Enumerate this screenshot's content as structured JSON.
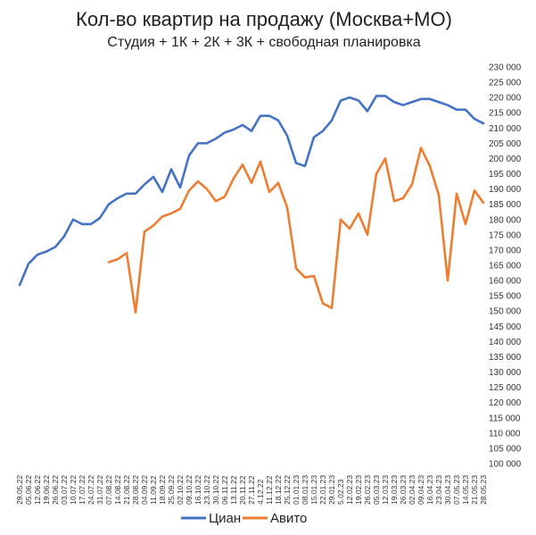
{
  "chart_data": {
    "type": "line",
    "title": "Кол-во квартир на продажу (Москва+МО)",
    "subtitle": "Студия + 1К + 2К + 3К + свободная планировка",
    "ylim": [
      100000,
      230000
    ],
    "ytick_step": 5000,
    "ytick_labels": [
      "100 000",
      "105 000",
      "110 000",
      "115 000",
      "120 000",
      "125 000",
      "130 000",
      "135 000",
      "140 000",
      "145 000",
      "150 000",
      "155 000",
      "160 000",
      "165 000",
      "170 000",
      "175 000",
      "180 000",
      "185 000",
      "190 000",
      "195 000",
      "200 000",
      "205 000",
      "210 000",
      "215 000",
      "220 000",
      "225 000",
      "230 000"
    ],
    "categories": [
      "29.05.22",
      "05.06.22",
      "12.06.22",
      "19.06.22",
      "26.06.22",
      "03.07.22",
      "10.07.22",
      "17.07.22",
      "24.07.22",
      "31.07.22",
      "07.08.22",
      "14.08.22",
      "21.08.22",
      "28.08.22",
      "04.09.22",
      "11.09.22",
      "18.09.22",
      "25.09.22",
      "02.10.22",
      "09.10.22",
      "16.10.22",
      "23.10.22",
      "30.10.22",
      "06.11.22",
      "13.11.22",
      "20.11.22",
      "27.11.22",
      "04.12.22",
      "11.12.22",
      "18.12.22",
      "25.12.22",
      "01.01.23",
      "08.01.23",
      "15.01.23",
      "22.01.23",
      "29.01.23",
      "05.02.23",
      "12.02.23",
      "19.02.23",
      "26.02.23",
      "05.03.23",
      "12.03.23",
      "19.03.23",
      "26.03.23",
      "02.04.23",
      "09.04.23",
      "16.04.23",
      "23.04.23",
      "30.04.23",
      "07.05.23",
      "14.05.23",
      "21.05.23",
      "28.05.23"
    ],
    "xtick_labels": [
      "29.05.22",
      "05.06.22",
      "12.06.22",
      "19.06.22",
      "26.06.22",
      "03.07.22",
      "10.07.22",
      "17.07.22",
      "24.07.22",
      "31.07.22",
      "07.08.22",
      "14.08.22",
      "21.08.22",
      "28.08.22",
      "04.09.22",
      "11.09.22",
      "18.09.22",
      "25.09.22",
      "02.10.22",
      "09.10.22",
      "16.10.22",
      "23.10.22",
      "30.10.22",
      "06.11.22",
      "13.11.22",
      "20.11.22",
      "27.11.22",
      "4.12.22",
      "11.12.22",
      "18.12.22",
      "25.12.22",
      "01.01.23",
      "08.01.23",
      "15.01.23",
      "22.01.23",
      "29.01.23",
      "5.02.23",
      "12.02.23",
      "19.02.23",
      "26.02.23",
      "05.03.23",
      "12.03.23",
      "19.03.23",
      "26.03.23",
      "02.04.23",
      "09.04.23",
      "16.04.23",
      "23.04.23",
      "30.04.23",
      "07.05.23",
      "14.05.23",
      "21.05.23",
      "28.05.23"
    ],
    "series": [
      {
        "name": "Циан",
        "color": "#4472C4",
        "values": [
          158500,
          165500,
          168500,
          169500,
          171000,
          174500,
          180000,
          178500,
          178500,
          180500,
          185000,
          187000,
          188500,
          188500,
          191500,
          194000,
          189000,
          196500,
          190500,
          201000,
          205000,
          205000,
          206500,
          208500,
          209500,
          211000,
          209000,
          214000,
          214000,
          212500,
          207500,
          198500,
          197500,
          207000,
          209000,
          212500,
          219000,
          220000,
          219000,
          215500,
          220500,
          220500,
          218500,
          217500,
          218500,
          219500,
          219500,
          218500,
          217500,
          216000,
          216000,
          213000,
          211500
        ]
      },
      {
        "name": "Авито",
        "color": "#ED7D31",
        "values": [
          null,
          null,
          null,
          null,
          null,
          null,
          null,
          null,
          null,
          null,
          166000,
          167000,
          169000,
          149500,
          176000,
          178000,
          181000,
          182000,
          183500,
          189500,
          192500,
          190000,
          186000,
          187500,
          193500,
          198000,
          192000,
          199000,
          189000,
          192000,
          184000,
          164000,
          161000,
          161500,
          152500,
          151000,
          180000,
          177000,
          182000,
          175000,
          195000,
          200000,
          186000,
          187000,
          191500,
          203500,
          197500,
          188000,
          160000,
          188500,
          178500,
          189500,
          185500
        ]
      }
    ],
    "grid": false,
    "legend_position": "bottom"
  }
}
